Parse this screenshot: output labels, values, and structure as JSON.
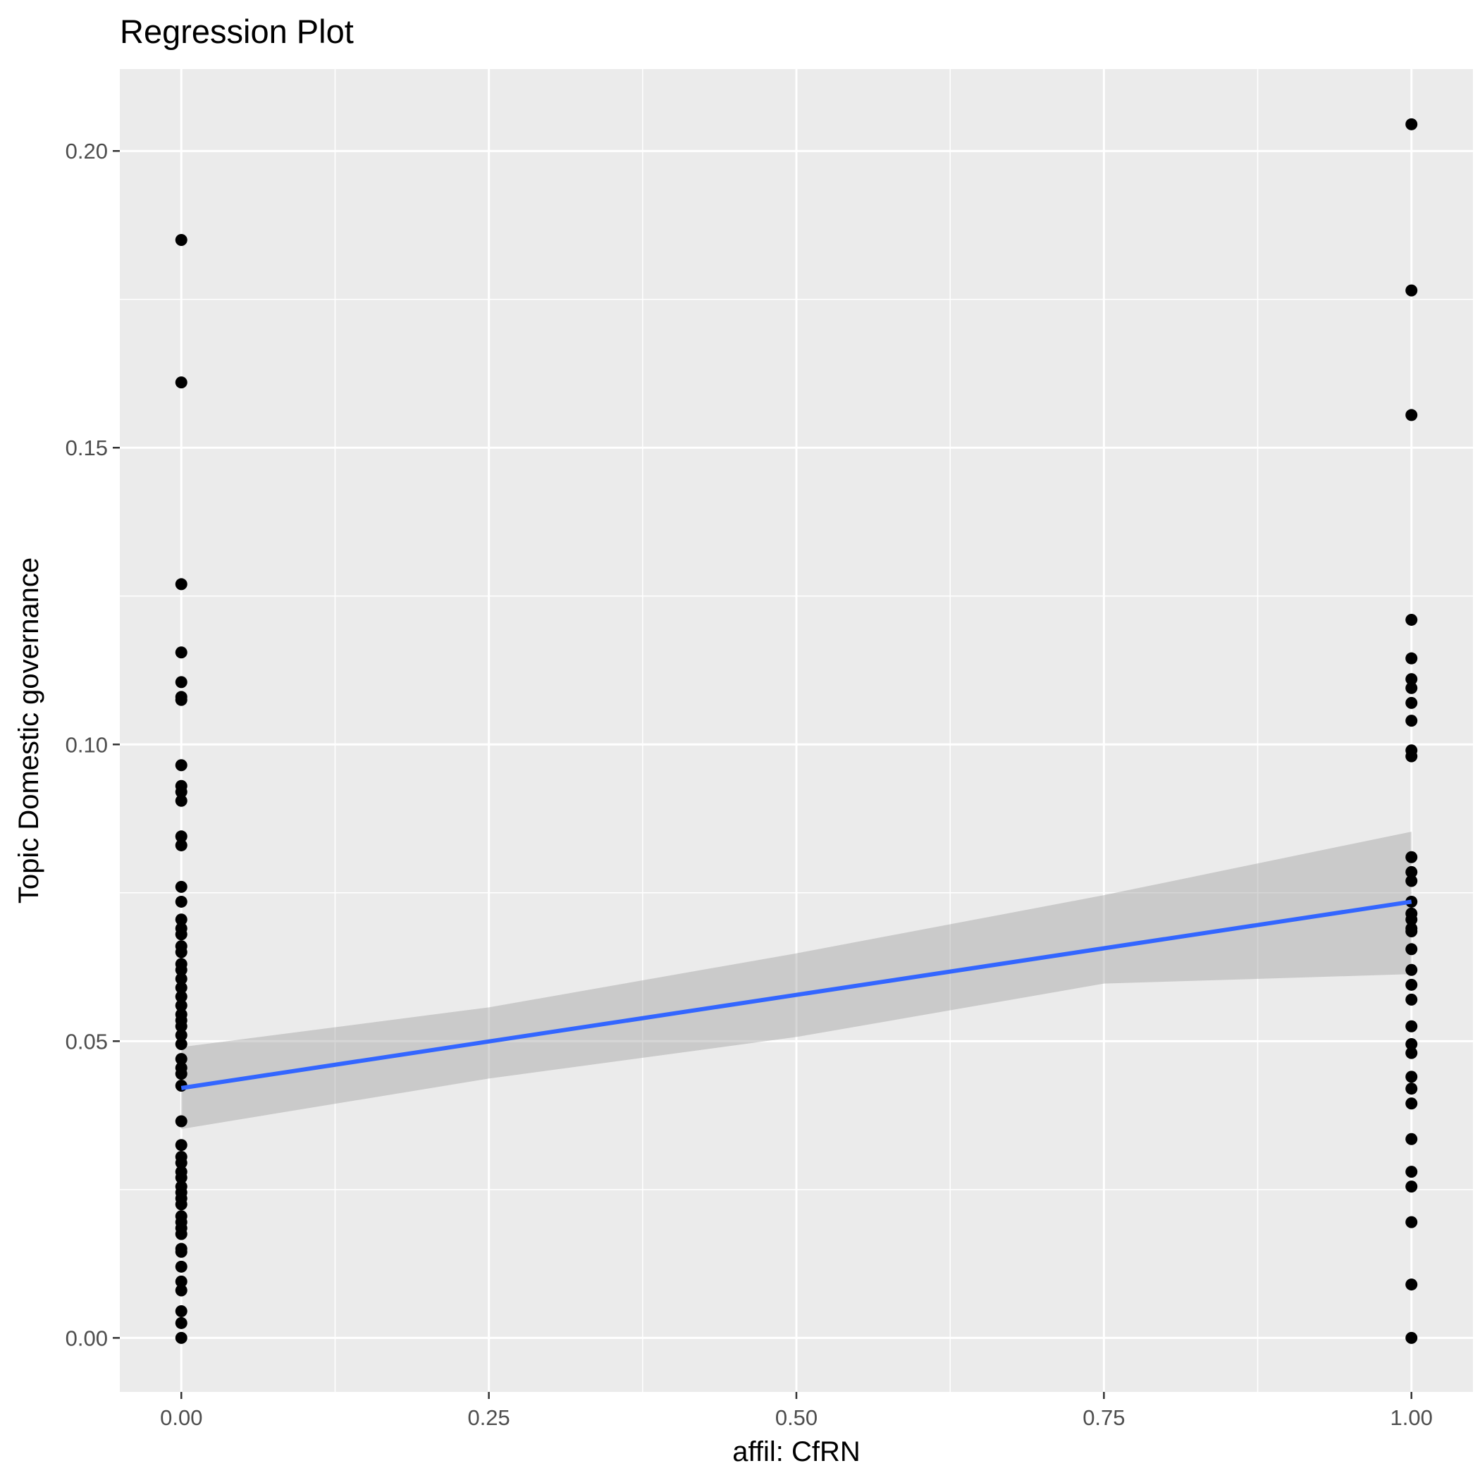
{
  "chart_data": {
    "type": "scatter",
    "title": "Regression Plot",
    "xlabel": "affil: CfRN",
    "ylabel": "Topic Domestic governance",
    "xlim": [
      -0.05,
      1.05
    ],
    "ylim": [
      -0.0091,
      0.2138
    ],
    "x_ticks": [
      0.0,
      0.25,
      0.5,
      0.75,
      1.0
    ],
    "x_tick_labels": [
      "0.00",
      "0.25",
      "0.50",
      "0.75",
      "1.00"
    ],
    "y_ticks": [
      0.0,
      0.05,
      0.1,
      0.15,
      0.2
    ],
    "y_tick_labels": [
      "0.00",
      "0.05",
      "0.10",
      "0.15",
      "0.20"
    ],
    "grid": true,
    "panel_background": "#ebebeb",
    "grid_color": "#ffffff",
    "point_color": "#000000",
    "line_color": "#3366ff",
    "band_color": "#999999",
    "points": {
      "x0_values": [
        0.185,
        0.161,
        0.127,
        0.1155,
        0.1105,
        0.108,
        0.1075,
        0.0965,
        0.093,
        0.092,
        0.0905,
        0.0845,
        0.083,
        0.076,
        0.0735,
        0.0705,
        0.069,
        0.068,
        0.066,
        0.065,
        0.063,
        0.062,
        0.0605,
        0.059,
        0.0575,
        0.056,
        0.0545,
        0.0535,
        0.0525,
        0.051,
        0.0495,
        0.047,
        0.0455,
        0.0445,
        0.0425,
        0.0365,
        0.0325,
        0.0305,
        0.0295,
        0.028,
        0.027,
        0.0255,
        0.0245,
        0.0235,
        0.0225,
        0.0205,
        0.0195,
        0.0185,
        0.0175,
        0.015,
        0.0145,
        0.012,
        0.0095,
        0.008,
        0.0045,
        0.0025,
        0.0
      ],
      "x1_values": [
        0.2045,
        0.1765,
        0.1555,
        0.121,
        0.1145,
        0.111,
        0.1095,
        0.107,
        0.104,
        0.099,
        0.098,
        0.081,
        0.0785,
        0.077,
        0.0735,
        0.0715,
        0.0705,
        0.069,
        0.0685,
        0.0655,
        0.062,
        0.0595,
        0.057,
        0.0525,
        0.0495,
        0.048,
        0.044,
        0.042,
        0.0395,
        0.0335,
        0.028,
        0.0255,
        0.0195,
        0.009,
        0.0
      ]
    },
    "fit": {
      "x": [
        0.0,
        1.0
      ],
      "y": [
        0.0421,
        0.0735
      ],
      "ci_lower": [
        0.0352,
        0.0613
      ],
      "ci_upper": [
        0.049,
        0.0853
      ]
    }
  }
}
